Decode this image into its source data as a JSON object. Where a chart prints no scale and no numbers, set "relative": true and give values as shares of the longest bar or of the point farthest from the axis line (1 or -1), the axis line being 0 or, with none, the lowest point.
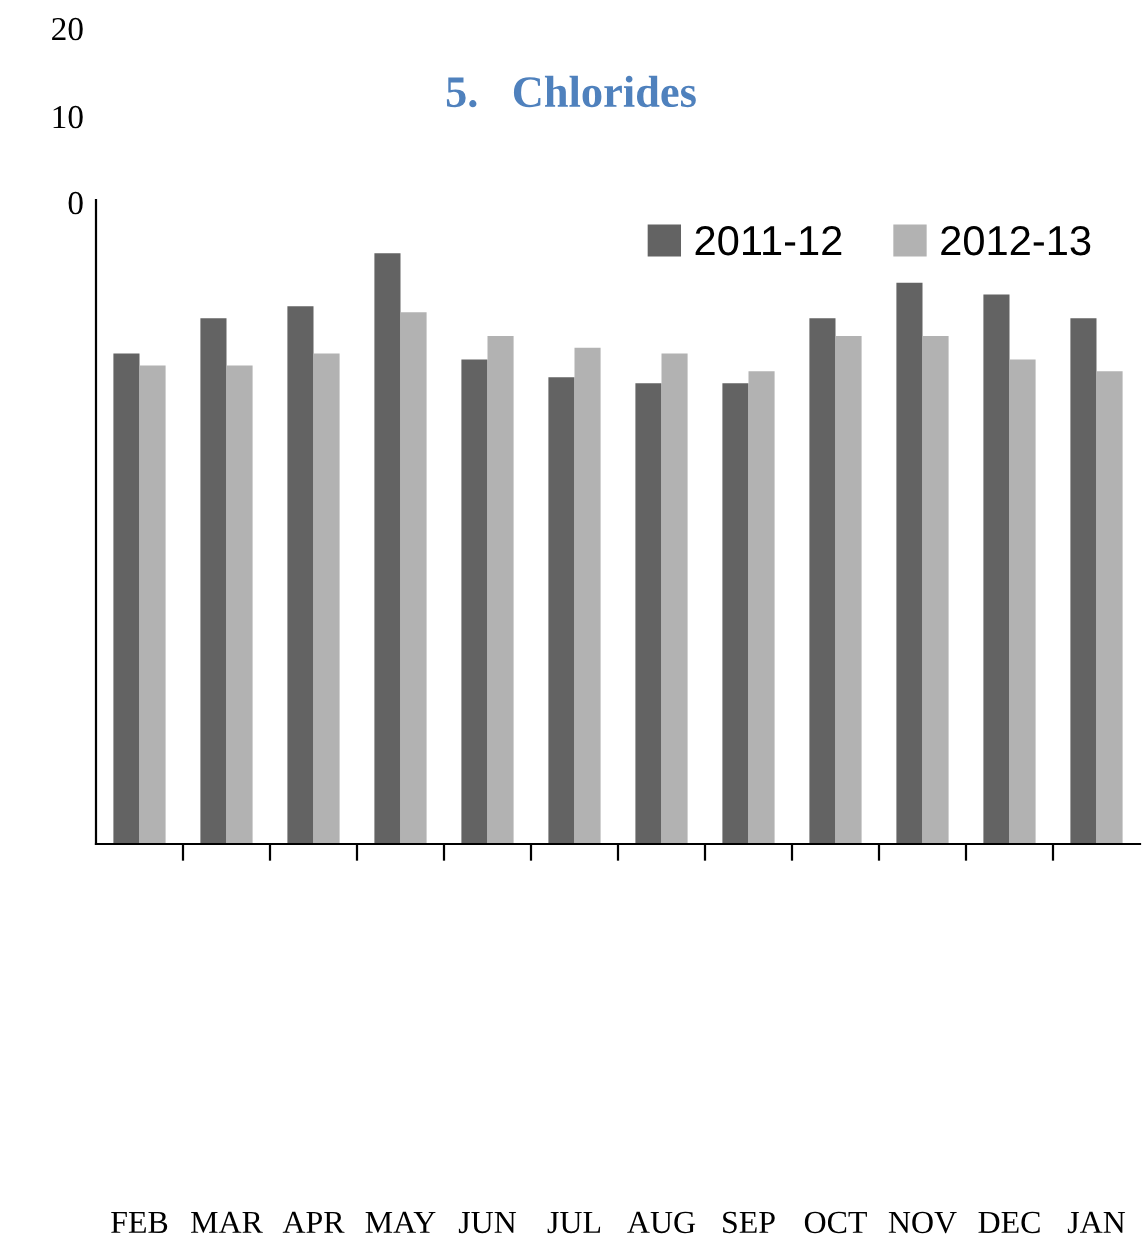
{
  "chart_data": {
    "type": "bar",
    "title": "5.   Chlorides",
    "relative": true,
    "legend": "top right",
    "grid": false,
    "categories": [
      "FEB",
      "MAR",
      "APR",
      "MAY",
      "JUN",
      "JUL",
      "AUG",
      "SEP",
      "OCT",
      "NOV",
      "DEC",
      "JAN"
    ],
    "series": [
      {
        "name": "2011-12",
        "color": "#636363",
        "values": [
          0.83,
          0.89,
          0.91,
          1,
          0.82,
          0.79,
          0.78,
          0.78,
          0.89,
          0.95,
          0.93,
          0.89
        ]
      },
      {
        "name": "2012-13",
        "color": "#b2b2b2",
        "values": [
          0.81,
          0.81,
          0.83,
          0.9,
          0.86,
          0.84,
          0.83,
          0.8,
          0.86,
          0.86,
          0.82,
          0.8
        ]
      }
    ],
    "annotations": [
      "20",
      "10",
      "0"
    ]
  }
}
